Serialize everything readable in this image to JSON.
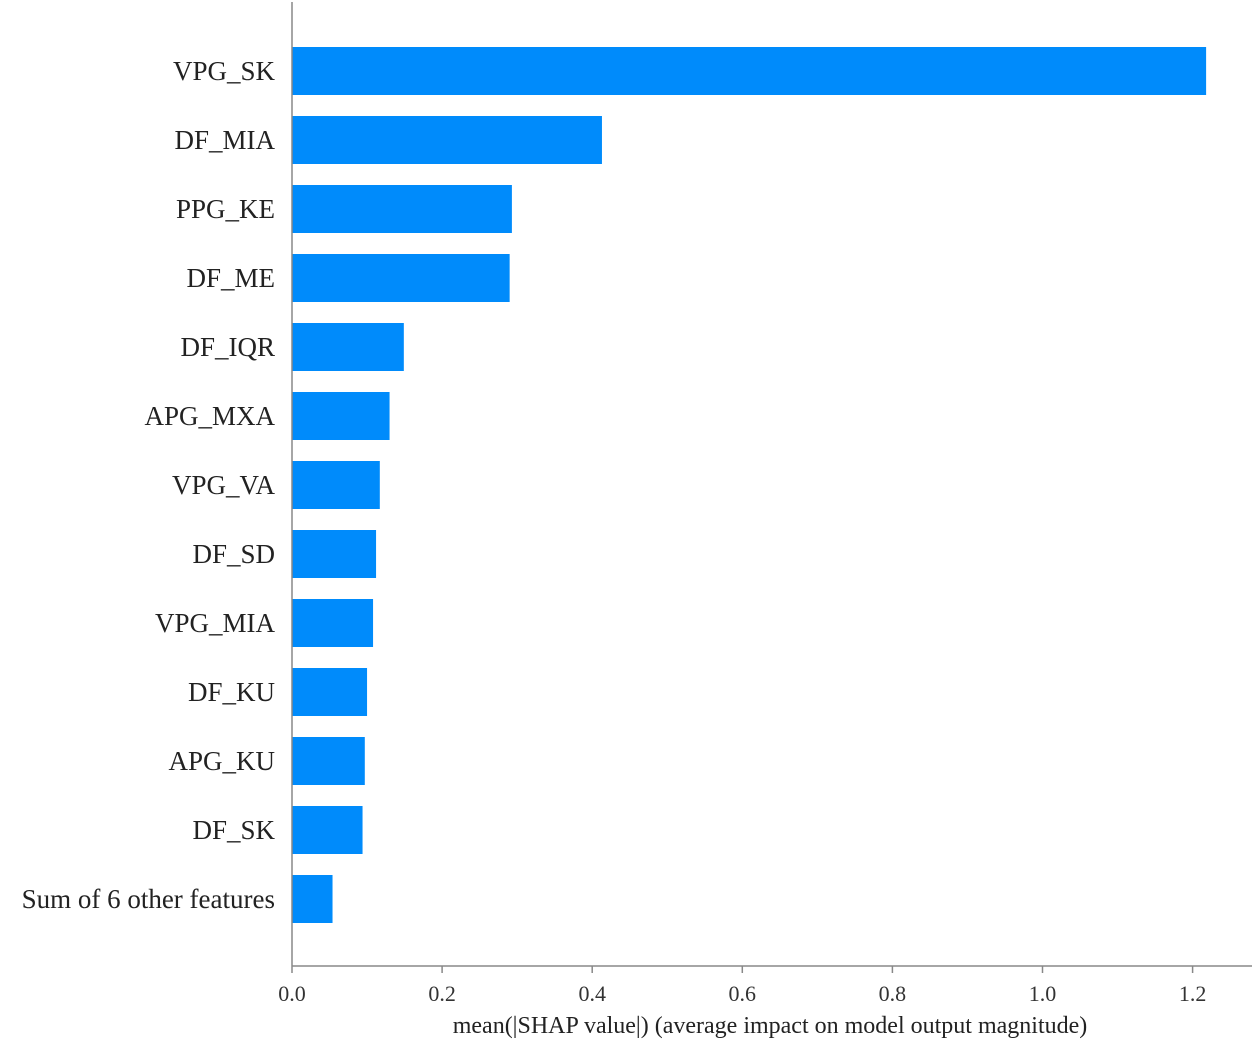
{
  "chart_data": {
    "type": "bar",
    "orientation": "horizontal",
    "categories": [
      "VPG_SK",
      "DF_MIA",
      "PPG_KE",
      "DF_ME",
      "DF_IQR",
      "APG_MXA",
      "VPG_VA",
      "DF_SD",
      "VPG_MIA",
      "DF_KU",
      "APG_KU",
      "DF_SK",
      "Sum of 6 other features"
    ],
    "values": [
      1.218,
      0.413,
      0.293,
      0.29,
      0.149,
      0.13,
      0.117,
      0.112,
      0.108,
      0.1,
      0.097,
      0.094,
      0.054
    ],
    "title": "",
    "xlabel": "mean(|SHAP value|) (average impact on model output magnitude)",
    "ylabel": "",
    "xlim": [
      0.0,
      1.28
    ],
    "xticks": [
      "0.0",
      "0.2",
      "0.4",
      "0.6",
      "0.8",
      "1.0",
      "1.2"
    ],
    "grid": false,
    "legend": "none",
    "bar_color": "#008bfb"
  }
}
